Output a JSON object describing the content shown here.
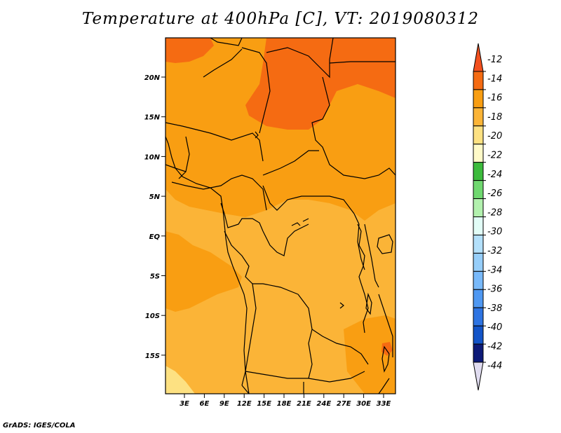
{
  "title": "Temperature at 400hPa [C], VT: 2019080312",
  "credit": "GrADS: IGES/COLA",
  "map": {
    "lat_ticks": [
      "20N",
      "15N",
      "10N",
      "5N",
      "EQ",
      "5S",
      "10S",
      "15S"
    ],
    "lon_ticks": [
      "3E",
      "6E",
      "9E",
      "12E",
      "15E",
      "18E",
      "21E",
      "24E",
      "27E",
      "30E",
      "33E"
    ],
    "fill_colors": {
      "band_minus_12_14": "#f56b12",
      "band_minus_14_16": "#f99e12",
      "band_minus_16_18": "#fbb437",
      "band_minus_18_20": "#fde182"
    }
  },
  "colorbar": {
    "labels": [
      "-12",
      "-14",
      "-16",
      "-18",
      "-20",
      "-22",
      "-24",
      "-26",
      "-28",
      "-30",
      "-32",
      "-34",
      "-36",
      "-38",
      "-40",
      "-42",
      "-44"
    ],
    "colors": [
      "#f2501e",
      "#f56b12",
      "#f99e12",
      "#fbb437",
      "#fde182",
      "#fffac8",
      "#3cbb3c",
      "#6fd86f",
      "#b2f1ae",
      "#e2fdf7",
      "#b3e0fb",
      "#96cefa",
      "#78b9fa",
      "#4f98f2",
      "#2e74e2",
      "#1354c8",
      "#0d1a78",
      "#e0dcf0"
    ]
  }
}
